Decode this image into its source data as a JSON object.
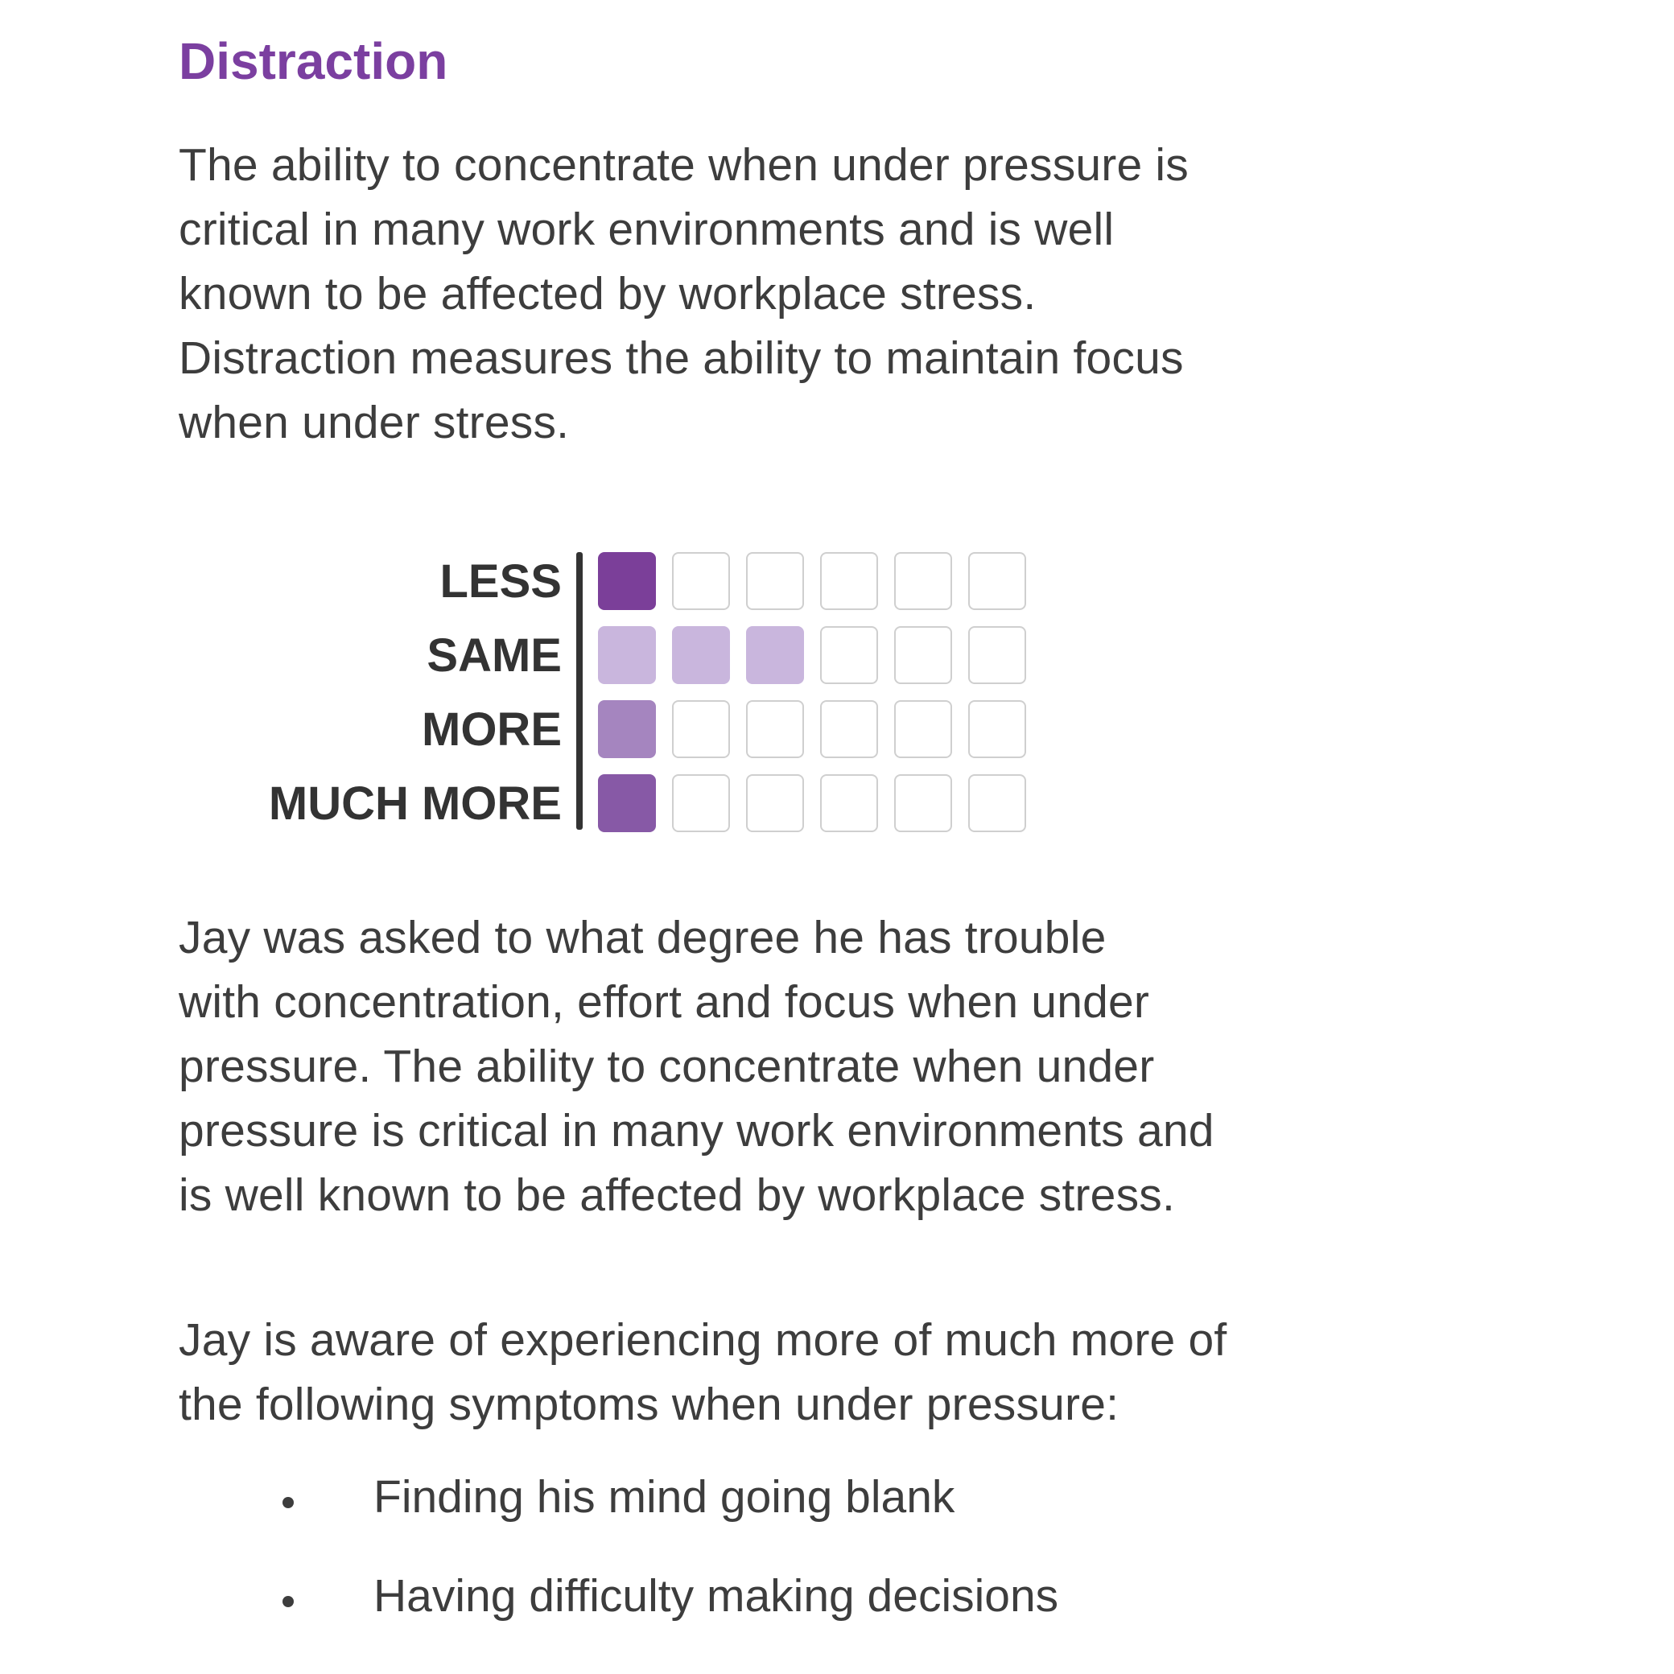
{
  "title": "Distraction",
  "intro_lines": [
    "The ability to concentrate when under pressure is",
    "critical in many work environments and is well",
    "known to be affected by workplace stress.",
    "Distraction measures the ability to maintain focus",
    "when under stress."
  ],
  "chart_data": {
    "type": "table",
    "rows": [
      {
        "label": "LESS",
        "filled": 1,
        "color": "#7b3f99"
      },
      {
        "label": "SAME",
        "filled": 3,
        "color": "#c9b6dd"
      },
      {
        "label": "MORE",
        "filled": 1,
        "color": "#a585bf"
      },
      {
        "label": "MUCH MORE",
        "filled": 1,
        "color": "#8759a6"
      }
    ],
    "total_cells": 6
  },
  "body1_lines": [
    "Jay was asked to what degree he has trouble",
    "with concentration, effort and focus when under",
    "pressure. The ability to concentrate when under",
    "pressure is critical in many work environments and",
    "is well known to be affected by workplace stress."
  ],
  "body2_lines": [
    "Jay is aware of experiencing more of much more of",
    "the following symptoms when under pressure:"
  ],
  "bullets": [
    "Finding his mind going blank",
    "Having difficulty making decisions"
  ]
}
